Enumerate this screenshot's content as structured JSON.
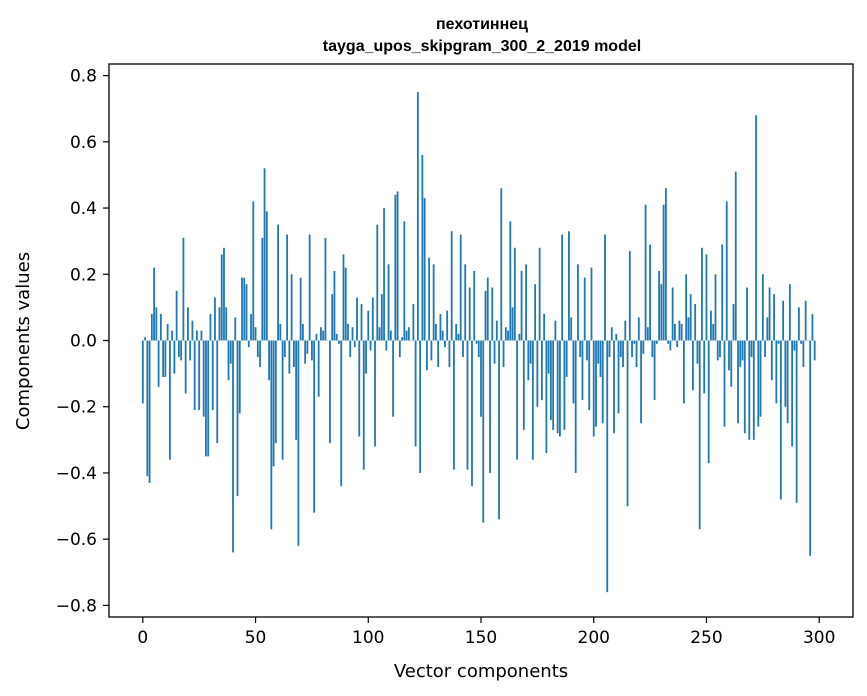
{
  "chart_data": {
    "type": "bar",
    "title": "пехотиннец",
    "subtitle": "tayga_upos_skipgram_300_2_2019 model",
    "xlabel": "Vector components",
    "ylabel": "Components values",
    "xlim": [
      -15,
      315
    ],
    "ylim": [
      -0.835,
      0.835
    ],
    "x_ticks": [
      0,
      50,
      100,
      150,
      200,
      250,
      300
    ],
    "x_tick_labels": [
      "0",
      "50",
      "100",
      "150",
      "200",
      "250",
      "300"
    ],
    "y_ticks": [
      -0.8,
      -0.6,
      -0.4,
      -0.2,
      0.0,
      0.2,
      0.4,
      0.6,
      0.8
    ],
    "y_tick_labels": [
      "−0.8",
      "−0.6",
      "−0.4",
      "−0.2",
      "0.0",
      "0.2",
      "0.4",
      "0.6",
      "0.8"
    ],
    "bar_color": "#1f77b4",
    "grid": false,
    "values": [
      -0.19,
      0.01,
      -0.41,
      -0.43,
      0.08,
      0.22,
      0.1,
      -0.14,
      0.08,
      -0.11,
      -0.11,
      0.05,
      -0.36,
      0.03,
      -0.1,
      0.15,
      -0.05,
      -0.06,
      0.31,
      -0.16,
      0.1,
      -0.06,
      0.06,
      -0.21,
      0.03,
      -0.21,
      0.03,
      -0.23,
      -0.35,
      -0.35,
      0.08,
      -0.21,
      0.13,
      -0.31,
      0.1,
      0.26,
      0.28,
      0.1,
      -0.12,
      -0.07,
      -0.64,
      0.07,
      -0.47,
      -0.22,
      0.19,
      0.19,
      0.17,
      -0.02,
      0.08,
      0.42,
      0.04,
      -0.05,
      -0.08,
      0.31,
      0.52,
      0.39,
      -0.12,
      -0.57,
      -0.38,
      -0.31,
      0.35,
      0.05,
      -0.36,
      -0.05,
      0.32,
      -0.1,
      0.2,
      -0.08,
      -0.3,
      -0.62,
      0.19,
      0.05,
      -0.07,
      -0.04,
      0.32,
      -0.06,
      -0.52,
      0.02,
      -0.17,
      0.04,
      0.03,
      0.31,
      0.0,
      -0.31,
      0.14,
      0.21,
      0.02,
      -0.01,
      -0.44,
      0.26,
      0.22,
      0.05,
      -0.05,
      0.04,
      -0.02,
      0.13,
      -0.29,
      0.11,
      -0.39,
      -0.1,
      0.09,
      -0.03,
      0.13,
      -0.32,
      0.35,
      0.04,
      0.14,
      0.4,
      -0.03,
      0.23,
      0.03,
      -0.23,
      0.44,
      0.45,
      -0.05,
      0.01,
      0.36,
      0.03,
      0.04,
      0.0,
      0.11,
      -0.32,
      0.75,
      -0.4,
      0.56,
      0.43,
      -0.09,
      0.25,
      -0.06,
      0.23,
      0.05,
      -0.08,
      0.08,
      0.03,
      -0.02,
      0.09,
      -0.08,
      0.33,
      -0.39,
      0.05,
      0.02,
      0.32,
      -0.05,
      0.23,
      -0.39,
      0.16,
      -0.44,
      0.21,
      -0.01,
      -0.05,
      -0.23,
      -0.55,
      0.15,
      0.19,
      -0.4,
      0.16,
      -0.07,
      0.06,
      -0.54,
      0.46,
      -0.08,
      0.04,
      0.03,
      0.36,
      0.1,
      0.28,
      -0.36,
      0.02,
      0.21,
      -0.27,
      0.23,
      -0.12,
      -0.07,
      -0.36,
      0.17,
      -0.2,
      0.28,
      -0.18,
      0.08,
      -0.34,
      -0.1,
      -0.24,
      -0.27,
      0.06,
      -0.28,
      -0.29,
      0.32,
      -0.27,
      -0.11,
      0.33,
      0.07,
      -0.19,
      -0.4,
      0.23,
      -0.05,
      -0.18,
      0.19,
      -0.06,
      -0.21,
      0.22,
      -0.29,
      -0.26,
      -0.07,
      -0.11,
      -0.25,
      0.32,
      -0.76,
      -0.05,
      0.04,
      -0.28,
      0.02,
      -0.22,
      -0.05,
      -0.08,
      0.06,
      -0.5,
      0.27,
      -0.05,
      -0.01,
      -0.08,
      0.07,
      -0.25,
      -0.04,
      0.41,
      0.04,
      0.29,
      -0.05,
      -0.18,
      -0.01,
      0.21,
      0.17,
      0.41,
      0.46,
      -0.01,
      -0.03,
      0.16,
      0.05,
      -0.02,
      0.06,
      0.05,
      -0.19,
      0.2,
      0.07,
      0.14,
      -0.15,
      0.11,
      -0.07,
      -0.57,
      0.28,
      -0.16,
      0.26,
      -0.37,
      0.09,
      0.05,
      0.2,
      -0.06,
      -0.05,
      0.29,
      -0.26,
      0.42,
      -0.09,
      -0.14,
      0.11,
      0.51,
      -0.25,
      -0.08,
      -0.06,
      -0.28,
      0.16,
      -0.3,
      -0.05,
      -0.3,
      0.68,
      -0.26,
      -0.23,
      0.2,
      -0.05,
      0.07,
      0.16,
      -0.12,
      0.14,
      -0.19,
      -0.01,
      -0.48,
      0.12,
      -0.2,
      -0.25,
      0.17,
      -0.32,
      -0.03,
      -0.49,
      0.1,
      -0.01,
      -0.08,
      0.12,
      0.0,
      -0.65,
      0.08,
      -0.06
    ]
  }
}
